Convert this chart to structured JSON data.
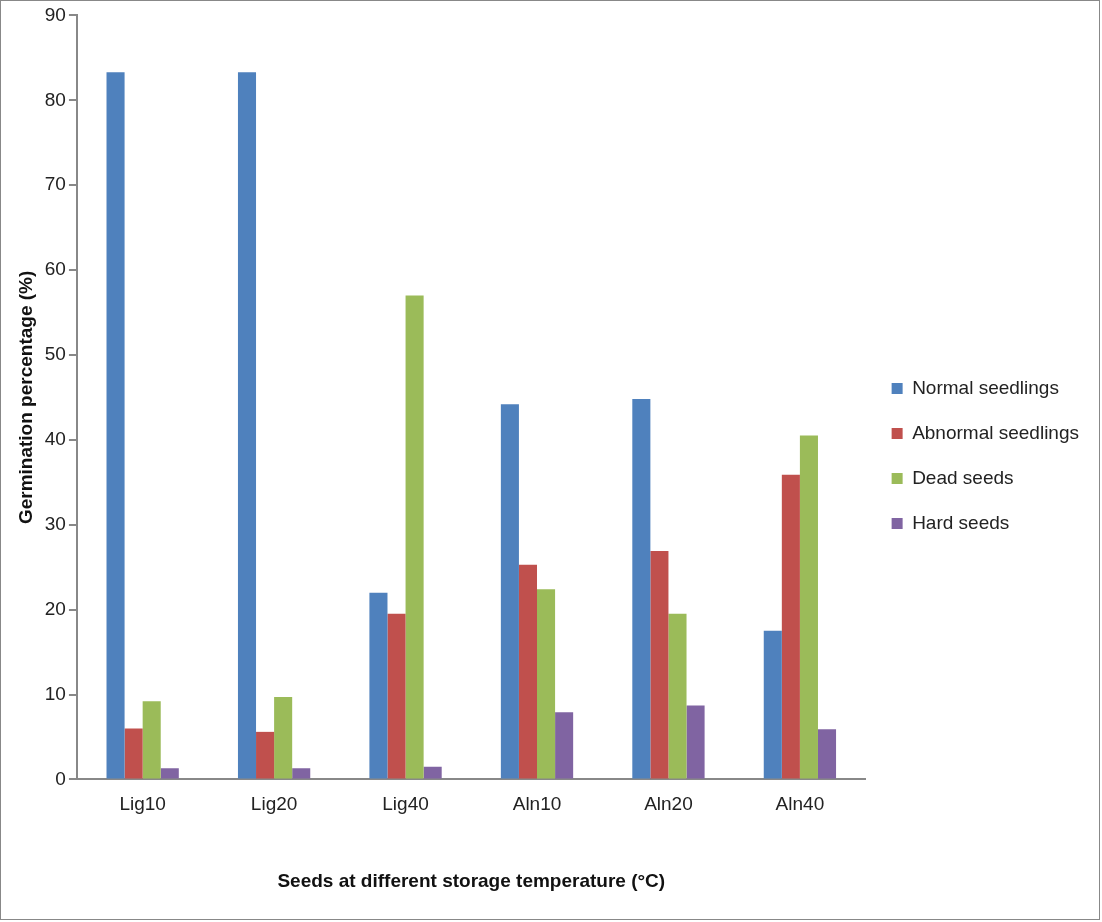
{
  "chart_data": {
    "type": "bar",
    "xlabel": "Seeds at different storage temperature (°C)",
    "ylabel": "Germination percentage (%)",
    "categories": [
      "Lig10",
      "Lig20",
      "Lig40",
      "Aln10",
      "Aln20",
      "Aln40"
    ],
    "series": [
      {
        "name": "Normal seedlings",
        "color": "#4f81bd",
        "values": [
          83.3,
          83.3,
          22,
          44.2,
          44.8,
          17.5
        ]
      },
      {
        "name": "Abnormal seedlings",
        "color": "#c0504d",
        "values": [
          6,
          5.6,
          19.5,
          25.3,
          26.9,
          35.9
        ]
      },
      {
        "name": "Dead seeds",
        "color": "#9bbb59",
        "values": [
          9.2,
          9.7,
          57,
          22.4,
          19.5,
          40.5
        ]
      },
      {
        "name": "Hard seeds",
        "color": "#8064a2",
        "values": [
          1.3,
          1.3,
          1.5,
          7.9,
          8.7,
          5.9
        ]
      }
    ],
    "ylim": [
      0,
      90
    ],
    "yticks": [
      0,
      10,
      20,
      30,
      40,
      50,
      60,
      70,
      80,
      90
    ],
    "grid": false,
    "legend": "right"
  }
}
